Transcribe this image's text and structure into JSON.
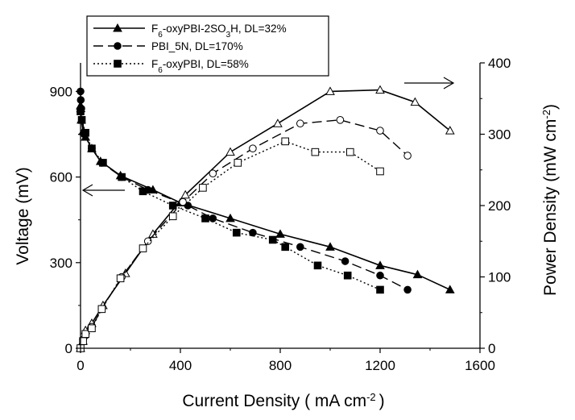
{
  "chart_data": {
    "type": "line",
    "xlabel": "Current Density ( mA cm",
    "xlabel_sup": "-2",
    "xlabel_end": ")",
    "ylabel_left": "Voltage (mV)",
    "ylabel_right": "Power Density (mW cm",
    "ylabel_right_sup": "-2",
    "ylabel_right_end": ")",
    "xlim": [
      0,
      1600
    ],
    "ylim_left": [
      0,
      1000
    ],
    "ylim_right": [
      0,
      400
    ],
    "x_ticks": [
      "0",
      "400",
      "800",
      "1200",
      "1600"
    ],
    "y_left_ticks": [
      "0",
      "300",
      "600",
      "900"
    ],
    "y_right_ticks": [
      "0",
      "100",
      "200",
      "300",
      "400"
    ],
    "grid": false,
    "legend_position": "top-left",
    "series": [
      {
        "name": "F6-oxyPBI-2SO3H, DL=32%",
        "legend": {
          "p1": "F",
          "p1_sub": "6",
          "p2": "-oxyPBI-2SO",
          "p2_sub": "3",
          "p3": "H, DL=32%"
        },
        "line_style": "solid",
        "marker": "triangle",
        "voltage": {
          "x": [
            0,
            1,
            3,
            10,
            20,
            45,
            80,
            160,
            290,
            400,
            600,
            800,
            1000,
            1200,
            1350,
            1480
          ],
          "y": [
            850,
            840,
            800,
            760,
            740,
            700,
            655,
            605,
            555,
            510,
            455,
            400,
            355,
            290,
            258,
            205
          ]
        },
        "power": {
          "x": [
            0,
            10,
            20,
            45,
            90,
            180,
            290,
            420,
            600,
            790,
            1000,
            1200,
            1340,
            1480
          ],
          "y": [
            0,
            10,
            25,
            35,
            60,
            105,
            160,
            215,
            275,
            315,
            360,
            362,
            345,
            305
          ]
        }
      },
      {
        "name": "PBI_5N, DL=170%",
        "legend": {
          "p1": "PBI_5N, DL=170%"
        },
        "line_style": "dashed",
        "marker": "circle",
        "voltage": {
          "x": [
            0,
            1,
            3,
            15,
            45,
            85,
            165,
            270,
            430,
            530,
            690,
            880,
            1060,
            1200,
            1310
          ],
          "y": [
            900,
            870,
            840,
            750,
            700,
            650,
            600,
            555,
            500,
            455,
            405,
            355,
            305,
            255,
            205
          ]
        },
        "power": {
          "x": [
            0,
            10,
            20,
            45,
            85,
            165,
            270,
            410,
            530,
            690,
            880,
            1040,
            1200,
            1310
          ],
          "y": [
            0,
            12,
            18,
            30,
            55,
            100,
            150,
            205,
            245,
            280,
            315,
            320,
            305,
            270
          ]
        }
      },
      {
        "name": "F6-oxyPBI, DL=58%",
        "legend": {
          "p1": "F",
          "p1_sub": "6",
          "p2": "-oxyPBI, DL=58%"
        },
        "line_style": "dotted",
        "marker": "square",
        "voltage": {
          "x": [
            0,
            5,
            20,
            45,
            90,
            165,
            250,
            370,
            500,
            625,
            770,
            820,
            950,
            1070,
            1200
          ],
          "y": [
            830,
            800,
            755,
            700,
            650,
            600,
            550,
            500,
            455,
            405,
            380,
            355,
            290,
            255,
            205
          ]
        },
        "power": {
          "x": [
            0,
            10,
            20,
            45,
            85,
            160,
            250,
            370,
            490,
            630,
            820,
            940,
            1080,
            1200
          ],
          "y": [
            0,
            10,
            20,
            28,
            55,
            98,
            140,
            185,
            225,
            260,
            290,
            275,
            275,
            248
          ]
        }
      }
    ],
    "annotations": [
      {
        "text": "arrow pointing left",
        "target": "left axis"
      },
      {
        "text": "arrow pointing right",
        "target": "right axis"
      }
    ]
  }
}
